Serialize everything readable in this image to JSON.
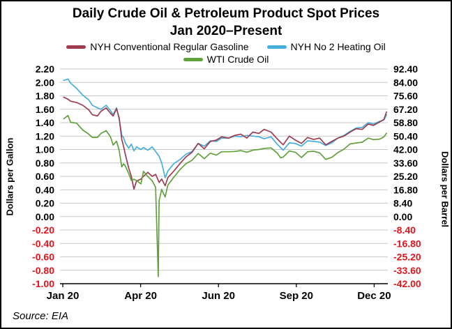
{
  "title": {
    "line1": "Daily Crude Oil & Petroleum Product Spot Prices",
    "line2": "Jan 2020–Present"
  },
  "source": {
    "text": "Source: EIA"
  },
  "legend": {
    "items": [
      {
        "label": "NYH Conventional Regular Gasoline",
        "color": "#9e3b4e"
      },
      {
        "label": "NYH No 2 Heating Oil",
        "color": "#45aedd"
      },
      {
        "label": "WTI Crude Oil",
        "color": "#60a13c"
      }
    ]
  },
  "axes": {
    "left": {
      "title": "Dollars per Gallon"
    },
    "right": {
      "title": "Dollars per Barrel"
    }
  },
  "colors": {
    "gridline": "#c9c9c9",
    "axis_line": "#000000",
    "tick_label": "#000000",
    "negative_tick_label": "#e8131a"
  },
  "chart_data": {
    "type": "line",
    "title": "Daily Crude Oil & Petroleum Product Spot Prices Jan 2020-Present",
    "xlabel": "",
    "ylabel_left": "Dollars per Gallon",
    "ylabel_right": "Dollars per Barrel",
    "ylim_left": [
      -1.0,
      2.2
    ],
    "ylim_right": [
      -42.0,
      92.4
    ],
    "right_axis_factor": 42,
    "grid": true,
    "legend_position": "top",
    "x_ticks": [
      "Jan 20",
      "Apr 20",
      "Jun 20",
      "Sep 20",
      "Dec 20"
    ],
    "y_ticks_left": [
      "2.20",
      "2.00",
      "1.80",
      "1.60",
      "1.40",
      "1.20",
      "1.00",
      "0.80",
      "0.60",
      "0.40",
      "0.20",
      "0.00",
      "-0.20",
      "-0.40",
      "-0.60",
      "-0.80",
      "-1.00"
    ],
    "y_ticks_right": [
      "92.40",
      "84.00",
      "75.60",
      "67.20",
      "58.80",
      "50.40",
      "42.00",
      "33.60",
      "25.20",
      "16.80",
      "8.40",
      "0.00",
      "-8.40",
      "-16.80",
      "-25.20",
      "-33.60",
      "-42.00"
    ],
    "series": [
      {
        "name": "NYH Conventional Regular Gasoline",
        "unit": "$/gallon",
        "axis": "left",
        "color": "#9e3b4e",
        "points": [
          [
            "2020-01-02",
            1.78
          ],
          [
            "2020-01-07",
            1.75
          ],
          [
            "2020-01-10",
            1.72
          ],
          [
            "2020-01-17",
            1.7
          ],
          [
            "2020-01-24",
            1.66
          ],
          [
            "2020-01-31",
            1.59
          ],
          [
            "2020-02-04",
            1.52
          ],
          [
            "2020-02-10",
            1.5
          ],
          [
            "2020-02-14",
            1.57
          ],
          [
            "2020-02-20",
            1.62
          ],
          [
            "2020-02-25",
            1.54
          ],
          [
            "2020-02-28",
            1.5
          ],
          [
            "2020-03-03",
            1.61
          ],
          [
            "2020-03-06",
            1.47
          ],
          [
            "2020-03-09",
            1.15
          ],
          [
            "2020-03-11",
            1.05
          ],
          [
            "2020-03-13",
            0.93
          ],
          [
            "2020-03-17",
            0.72
          ],
          [
            "2020-03-20",
            0.6
          ],
          [
            "2020-03-23",
            0.41
          ],
          [
            "2020-03-26",
            0.53
          ],
          [
            "2020-03-31",
            0.56
          ],
          [
            "2020-04-03",
            0.6
          ],
          [
            "2020-04-08",
            0.66
          ],
          [
            "2020-04-13",
            0.6
          ],
          [
            "2020-04-17",
            0.63
          ],
          [
            "2020-04-21",
            0.51
          ],
          [
            "2020-04-24",
            0.56
          ],
          [
            "2020-04-28",
            0.46
          ],
          [
            "2020-05-01",
            0.58
          ],
          [
            "2020-05-08",
            0.68
          ],
          [
            "2020-05-15",
            0.79
          ],
          [
            "2020-05-22",
            0.89
          ],
          [
            "2020-05-29",
            0.96
          ],
          [
            "2020-06-05",
            1.09
          ],
          [
            "2020-06-12",
            1.01
          ],
          [
            "2020-06-19",
            1.12
          ],
          [
            "2020-06-26",
            1.14
          ],
          [
            "2020-07-02",
            1.19
          ],
          [
            "2020-07-10",
            1.17
          ],
          [
            "2020-07-17",
            1.21
          ],
          [
            "2020-07-24",
            1.23
          ],
          [
            "2020-07-31",
            1.17
          ],
          [
            "2020-08-07",
            1.26
          ],
          [
            "2020-08-14",
            1.24
          ],
          [
            "2020-08-20",
            1.3
          ],
          [
            "2020-08-28",
            1.26
          ],
          [
            "2020-09-04",
            1.16
          ],
          [
            "2020-09-11",
            1.07
          ],
          [
            "2020-09-18",
            1.2
          ],
          [
            "2020-09-25",
            1.14
          ],
          [
            "2020-10-02",
            1.09
          ],
          [
            "2020-10-09",
            1.18
          ],
          [
            "2020-10-16",
            1.15
          ],
          [
            "2020-10-23",
            1.17
          ],
          [
            "2020-10-30",
            1.07
          ],
          [
            "2020-11-06",
            1.12
          ],
          [
            "2020-11-13",
            1.17
          ],
          [
            "2020-11-20",
            1.2
          ],
          [
            "2020-11-27",
            1.26
          ],
          [
            "2020-12-04",
            1.31
          ],
          [
            "2020-12-11",
            1.3
          ],
          [
            "2020-12-18",
            1.38
          ],
          [
            "2020-12-24",
            1.36
          ],
          [
            "2020-12-31",
            1.41
          ],
          [
            "2021-01-05",
            1.45
          ],
          [
            "2021-01-08",
            1.56
          ]
        ]
      },
      {
        "name": "NYH No 2 Heating Oil",
        "unit": "$/gallon",
        "axis": "left",
        "color": "#45aedd",
        "points": [
          [
            "2020-01-02",
            2.03
          ],
          [
            "2020-01-07",
            2.05
          ],
          [
            "2020-01-10",
            1.99
          ],
          [
            "2020-01-17",
            1.91
          ],
          [
            "2020-01-24",
            1.81
          ],
          [
            "2020-01-31",
            1.74
          ],
          [
            "2020-02-04",
            1.66
          ],
          [
            "2020-02-10",
            1.62
          ],
          [
            "2020-02-14",
            1.6
          ],
          [
            "2020-02-20",
            1.66
          ],
          [
            "2020-02-25",
            1.58
          ],
          [
            "2020-02-28",
            1.52
          ],
          [
            "2020-03-03",
            1.62
          ],
          [
            "2020-03-06",
            1.45
          ],
          [
            "2020-03-09",
            1.21
          ],
          [
            "2020-03-11",
            1.18
          ],
          [
            "2020-03-13",
            1.1
          ],
          [
            "2020-03-17",
            1.02
          ],
          [
            "2020-03-20",
            1.08
          ],
          [
            "2020-03-23",
            0.98
          ],
          [
            "2020-03-26",
            1.04
          ],
          [
            "2020-03-31",
            1.0
          ],
          [
            "2020-04-03",
            1.03
          ],
          [
            "2020-04-08",
            0.99
          ],
          [
            "2020-04-13",
            1.04
          ],
          [
            "2020-04-17",
            0.97
          ],
          [
            "2020-04-21",
            0.9
          ],
          [
            "2020-04-24",
            0.8
          ],
          [
            "2020-04-28",
            0.58
          ],
          [
            "2020-05-01",
            0.68
          ],
          [
            "2020-05-08",
            0.79
          ],
          [
            "2020-05-15",
            0.85
          ],
          [
            "2020-05-22",
            0.93
          ],
          [
            "2020-05-29",
            0.97
          ],
          [
            "2020-06-05",
            1.09
          ],
          [
            "2020-06-12",
            1.05
          ],
          [
            "2020-06-19",
            1.13
          ],
          [
            "2020-06-26",
            1.12
          ],
          [
            "2020-07-02",
            1.17
          ],
          [
            "2020-07-10",
            1.17
          ],
          [
            "2020-07-17",
            1.2
          ],
          [
            "2020-07-24",
            1.19
          ],
          [
            "2020-07-31",
            1.21
          ],
          [
            "2020-08-07",
            1.2
          ],
          [
            "2020-08-14",
            1.19
          ],
          [
            "2020-08-20",
            1.16
          ],
          [
            "2020-08-28",
            1.19
          ],
          [
            "2020-09-04",
            1.08
          ],
          [
            "2020-09-11",
            0.99
          ],
          [
            "2020-09-18",
            1.1
          ],
          [
            "2020-09-25",
            1.09
          ],
          [
            "2020-10-02",
            1.05
          ],
          [
            "2020-10-09",
            1.13
          ],
          [
            "2020-10-16",
            1.12
          ],
          [
            "2020-10-23",
            1.11
          ],
          [
            "2020-10-30",
            1.06
          ],
          [
            "2020-11-06",
            1.1
          ],
          [
            "2020-11-13",
            1.17
          ],
          [
            "2020-11-20",
            1.21
          ],
          [
            "2020-11-27",
            1.27
          ],
          [
            "2020-12-04",
            1.32
          ],
          [
            "2020-12-11",
            1.33
          ],
          [
            "2020-12-18",
            1.4
          ],
          [
            "2020-12-24",
            1.38
          ],
          [
            "2020-12-31",
            1.42
          ],
          [
            "2021-01-05",
            1.44
          ],
          [
            "2021-01-08",
            1.52
          ]
        ]
      },
      {
        "name": "WTI Crude Oil",
        "unit": "$/barrel",
        "axis": "right",
        "color": "#60a13c",
        "points": [
          [
            "2020-01-02",
            61.2
          ],
          [
            "2020-01-07",
            63.3
          ],
          [
            "2020-01-10",
            59.0
          ],
          [
            "2020-01-17",
            58.5
          ],
          [
            "2020-01-24",
            54.2
          ],
          [
            "2020-01-31",
            51.6
          ],
          [
            "2020-02-04",
            49.6
          ],
          [
            "2020-02-10",
            49.6
          ],
          [
            "2020-02-14",
            52.1
          ],
          [
            "2020-02-20",
            53.8
          ],
          [
            "2020-02-25",
            50.0
          ],
          [
            "2020-02-28",
            44.8
          ],
          [
            "2020-03-03",
            47.2
          ],
          [
            "2020-03-06",
            41.3
          ],
          [
            "2020-03-09",
            31.1
          ],
          [
            "2020-03-11",
            33.0
          ],
          [
            "2020-03-13",
            31.7
          ],
          [
            "2020-03-17",
            26.9
          ],
          [
            "2020-03-20",
            22.6
          ],
          [
            "2020-03-23",
            23.4
          ],
          [
            "2020-03-26",
            22.6
          ],
          [
            "2020-03-31",
            20.5
          ],
          [
            "2020-04-03",
            28.3
          ],
          [
            "2020-04-08",
            25.1
          ],
          [
            "2020-04-13",
            22.4
          ],
          [
            "2020-04-17",
            18.3
          ],
          [
            "2020-04-20",
            -37.6
          ],
          [
            "2020-04-21",
            10.0
          ],
          [
            "2020-04-24",
            17.0
          ],
          [
            "2020-04-28",
            12.3
          ],
          [
            "2020-05-01",
            19.7
          ],
          [
            "2020-05-08",
            24.7
          ],
          [
            "2020-05-15",
            29.4
          ],
          [
            "2020-05-22",
            33.2
          ],
          [
            "2020-05-29",
            35.3
          ],
          [
            "2020-06-05",
            39.5
          ],
          [
            "2020-06-12",
            36.3
          ],
          [
            "2020-06-19",
            39.7
          ],
          [
            "2020-06-26",
            38.5
          ],
          [
            "2020-07-02",
            40.6
          ],
          [
            "2020-07-10",
            40.6
          ],
          [
            "2020-07-17",
            40.8
          ],
          [
            "2020-07-24",
            41.3
          ],
          [
            "2020-07-31",
            40.3
          ],
          [
            "2020-08-07",
            41.6
          ],
          [
            "2020-08-14",
            42.0
          ],
          [
            "2020-08-20",
            42.7
          ],
          [
            "2020-08-28",
            43.0
          ],
          [
            "2020-09-04",
            39.8
          ],
          [
            "2020-09-08",
            36.8
          ],
          [
            "2020-09-11",
            37.3
          ],
          [
            "2020-09-18",
            41.1
          ],
          [
            "2020-09-25",
            40.3
          ],
          [
            "2020-10-02",
            37.0
          ],
          [
            "2020-10-09",
            40.6
          ],
          [
            "2020-10-16",
            40.9
          ],
          [
            "2020-10-23",
            39.9
          ],
          [
            "2020-10-30",
            35.8
          ],
          [
            "2020-11-06",
            37.1
          ],
          [
            "2020-11-13",
            40.1
          ],
          [
            "2020-11-20",
            42.2
          ],
          [
            "2020-11-27",
            45.5
          ],
          [
            "2020-12-04",
            46.1
          ],
          [
            "2020-12-11",
            46.6
          ],
          [
            "2020-12-18",
            49.1
          ],
          [
            "2020-12-24",
            48.2
          ],
          [
            "2020-12-31",
            48.5
          ],
          [
            "2021-01-05",
            49.9
          ],
          [
            "2021-01-08",
            52.2
          ]
        ]
      }
    ]
  }
}
